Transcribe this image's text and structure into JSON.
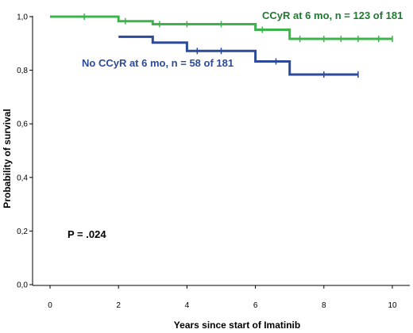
{
  "chart_data": {
    "type": "line",
    "subtype": "kaplan-meier step plot",
    "xlabel": "Years since start of Imatinib",
    "ylabel": "Probability of survival",
    "xlim": [
      0,
      10
    ],
    "ylim": [
      0,
      1.0
    ],
    "x_ticks": [
      0,
      2,
      4,
      6,
      8,
      10
    ],
    "x_tick_labels": [
      "0",
      "2",
      "4",
      "6",
      "8",
      "10"
    ],
    "y_ticks": [
      0,
      0.2,
      0.4,
      0.6,
      0.8,
      1.0
    ],
    "y_tick_labels": [
      "0,0",
      "0,2",
      "0,4",
      "0,6",
      "0,8",
      "1,0"
    ],
    "grid": false,
    "series": [
      {
        "name": "CCyR at 6 mo, n = 123 of 181",
        "color": "#3cb44b",
        "steps": [
          {
            "x": 0,
            "y": 1.0
          },
          {
            "x": 2,
            "y": 0.983
          },
          {
            "x": 3,
            "y": 0.972
          },
          {
            "x": 6,
            "y": 0.951
          },
          {
            "x": 7,
            "y": 0.917
          },
          {
            "x": 10,
            "y": 0.917
          }
        ],
        "censor_x": [
          1,
          2.2,
          3.2,
          4,
          5,
          6.2,
          7.3,
          8,
          8.5,
          9,
          9.6,
          10
        ]
      },
      {
        "name": "No CCyR at 6 mo, n = 58 of 181",
        "color": "#2b4a9b",
        "steps": [
          {
            "x": 2,
            "y": 0.925
          },
          {
            "x": 3,
            "y": 0.903
          },
          {
            "x": 4,
            "y": 0.872
          },
          {
            "x": 6,
            "y": 0.833
          },
          {
            "x": 7,
            "y": 0.784
          },
          {
            "x": 9,
            "y": 0.784
          }
        ],
        "censor_x": [
          4.3,
          5,
          6.6,
          8,
          9
        ]
      }
    ],
    "annotations": [
      {
        "text": "CCyR at 6 mo, n = 123 of 181",
        "color": "#1f7a2e"
      },
      {
        "text": "No CCyR at 6 mo, n = 58 of 181",
        "color": "#2b4a9b"
      },
      {
        "text": "P = .024",
        "color": "#000000"
      }
    ]
  }
}
